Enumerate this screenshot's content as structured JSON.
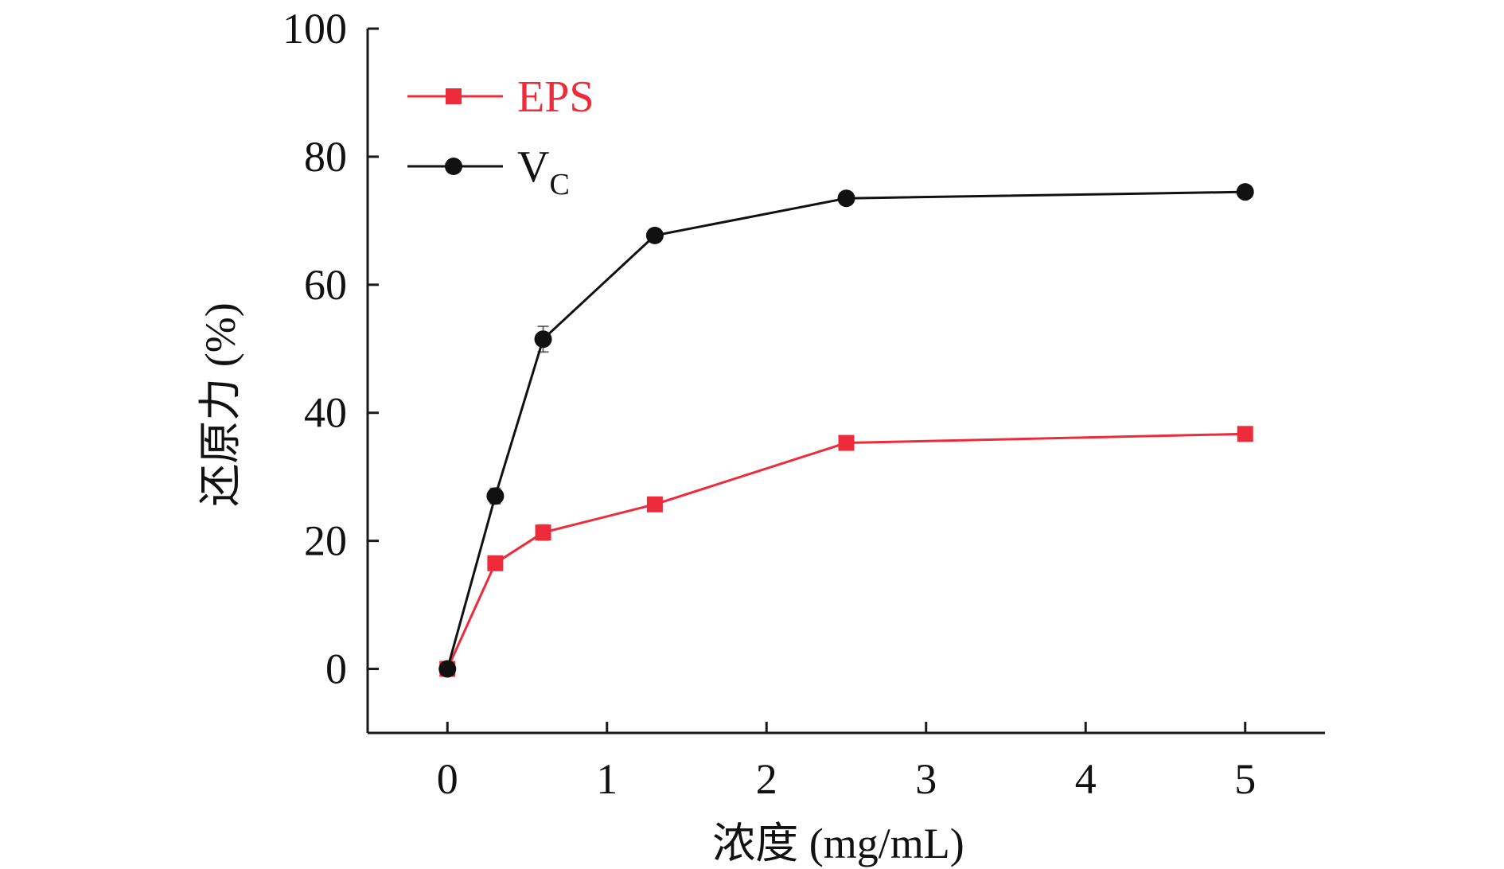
{
  "chart_data": {
    "type": "line",
    "xlabel": "浓度 (mg/mL)",
    "ylabel": "还原力 (%)",
    "xlim": [
      -0.5,
      5.5
    ],
    "ylim": [
      -10,
      100
    ],
    "xticks": [
      0,
      1,
      2,
      3,
      4,
      5
    ],
    "yticks": [
      0,
      20,
      40,
      60,
      80,
      100
    ],
    "grid": false,
    "legend_position": "top-left",
    "series": [
      {
        "name": "EPS",
        "color": "#ee2b3a",
        "marker": "square",
        "x": [
          0,
          0.3,
          0.6,
          1.3,
          2.5,
          5
        ],
        "y": [
          0,
          16.5,
          21.3,
          25.7,
          35.3,
          36.7
        ],
        "err": [
          0,
          1.0,
          1.2,
          0.8,
          0.6,
          0.6
        ]
      },
      {
        "name": "VC",
        "legend_main": "V",
        "legend_sub": "C",
        "color": "#111111",
        "marker": "circle",
        "x": [
          0,
          0.3,
          0.6,
          1.3,
          2.5,
          5
        ],
        "y": [
          0,
          27,
          51.5,
          67.7,
          73.5,
          74.5
        ],
        "err": [
          0,
          1.2,
          2.0,
          0.8,
          0.6,
          0.6
        ]
      }
    ]
  }
}
